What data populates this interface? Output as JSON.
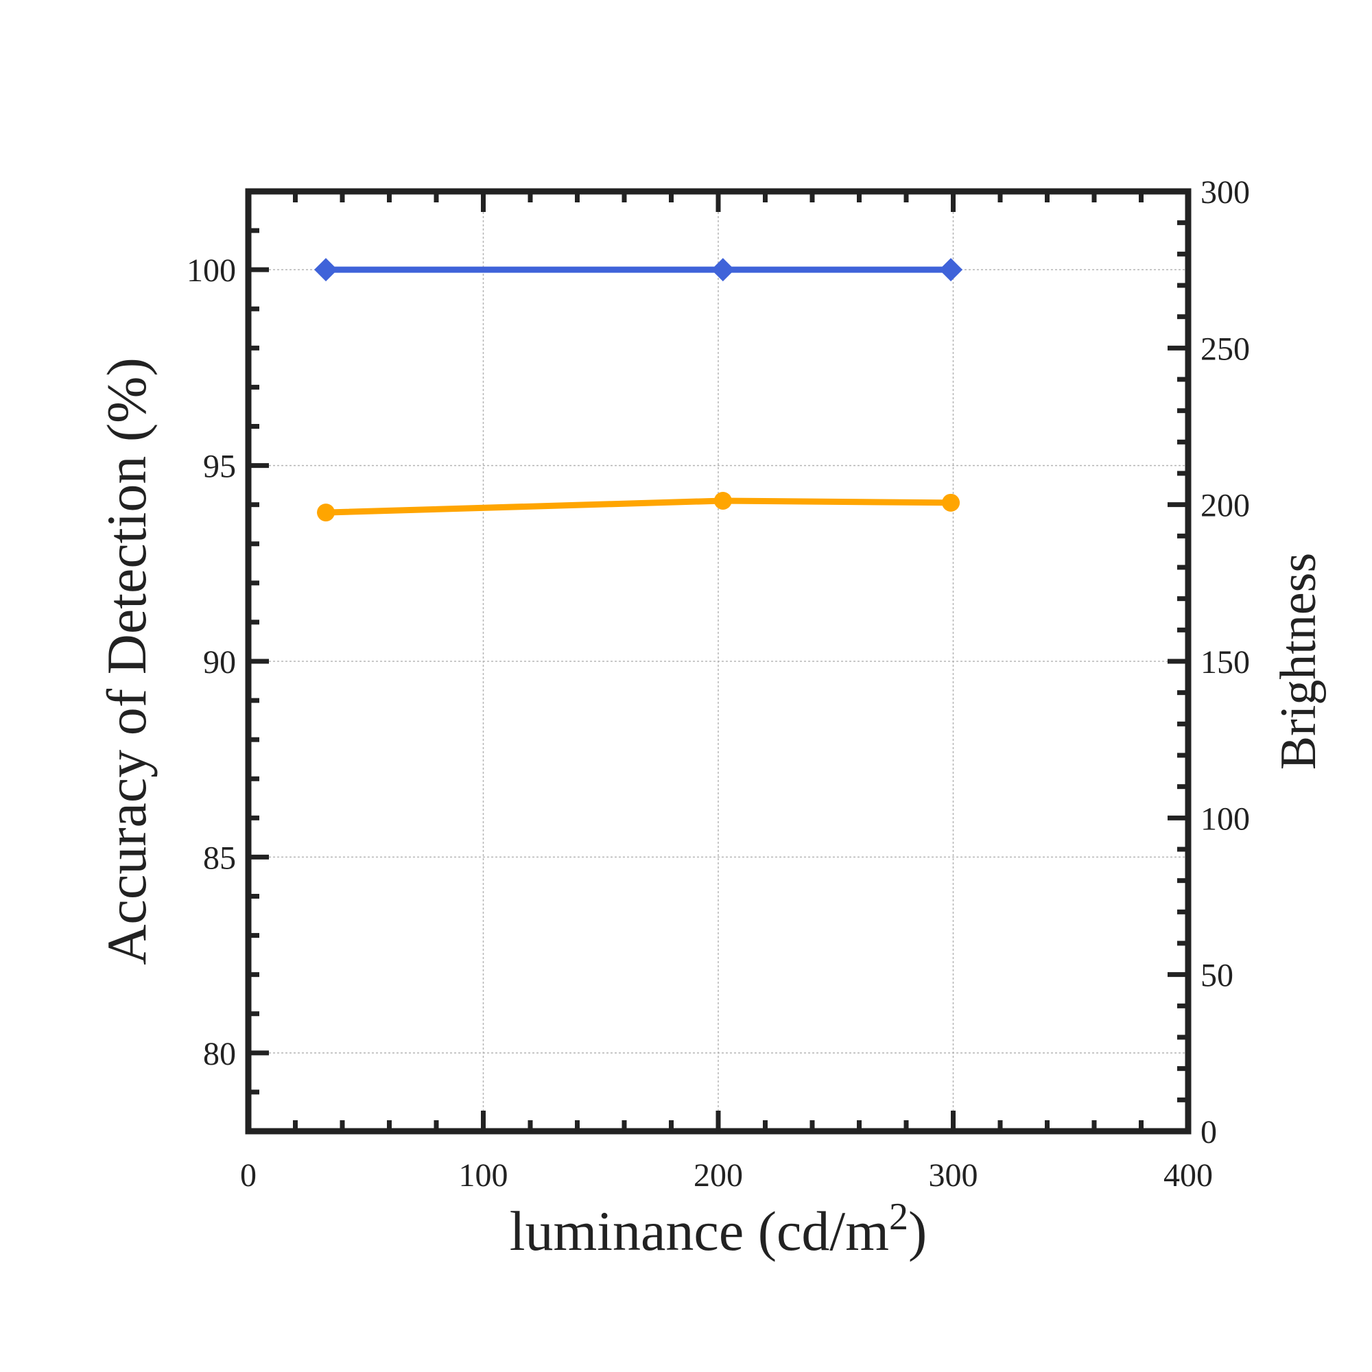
{
  "chart_data": {
    "type": "line",
    "title": "",
    "xlabel": {
      "text": "luminance (cd/m",
      "superscript": "2",
      "suffix": ")"
    },
    "ylabel": "Accuracy of Detection (%)",
    "y2label": "Brightness",
    "xlim": [
      0,
      400
    ],
    "ylim": [
      78,
      102
    ],
    "y2lim": [
      0,
      300
    ],
    "xticks": [
      0,
      100,
      200,
      300,
      400
    ],
    "yticks": [
      80,
      85,
      90,
      95,
      100
    ],
    "y2ticks": [
      0,
      50,
      100,
      150,
      200,
      250,
      300
    ],
    "grid": true,
    "legend": "none",
    "series": [
      {
        "axis": "left",
        "marker": "diamond",
        "color": "#3f63d9",
        "x": [
          33,
          202,
          299
        ],
        "y": [
          100,
          100,
          100
        ]
      },
      {
        "axis": "left",
        "marker": "circle",
        "color": "#ffa500",
        "x": [
          33,
          202,
          299
        ],
        "y": [
          93.8,
          94.1,
          94.05
        ]
      }
    ]
  }
}
